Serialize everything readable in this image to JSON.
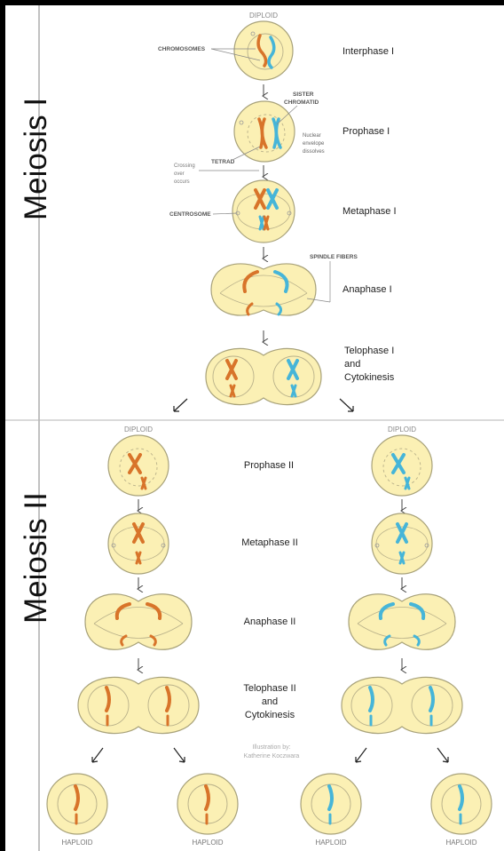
{
  "sections": {
    "meiosis1": "Meiosis I",
    "meiosis2": "Meiosis II"
  },
  "phases": {
    "interphase1": "Interphase I",
    "prophase1": "Prophase I",
    "metaphase1": "Metaphase I",
    "anaphase1": "Anaphase I",
    "telophase1_l1": "Telophase I",
    "telophase1_l2": "and",
    "telophase1_l3": "Cytokinesis",
    "prophase2": "Prophase II",
    "metaphase2": "Metaphase II",
    "anaphase2": "Anaphase II",
    "telophase2_l1": "Telophase II",
    "telophase2_l2": "and",
    "telophase2_l3": "Cytokinesis"
  },
  "labels": {
    "diploid": "DIPLOID",
    "haploid": "HAPLOID",
    "chromosomes": "CHROMOSOMES",
    "sister_l1": "SISTER",
    "sister_l2": "CHROMATID",
    "nuclear_l1": "Nuclear",
    "nuclear_l2": "envelope",
    "nuclear_l3": "dissolves",
    "tetrad": "TETRAD",
    "crossing_l1": "Crossing",
    "crossing_l2": "over",
    "crossing_l3": "occurs",
    "centrosome": "CENTROSOME",
    "spindle": "SPINDLE FIBERS"
  },
  "credit": {
    "line1": "Illustration by:",
    "line2": "Katherine Koczwara"
  },
  "colors": {
    "cell_fill": "#fbf0b4",
    "cell_stroke": "#a8a27a",
    "maternal": "#d8742a",
    "paternal": "#46b5d8",
    "background": "#ffffff",
    "text": "#333333"
  }
}
